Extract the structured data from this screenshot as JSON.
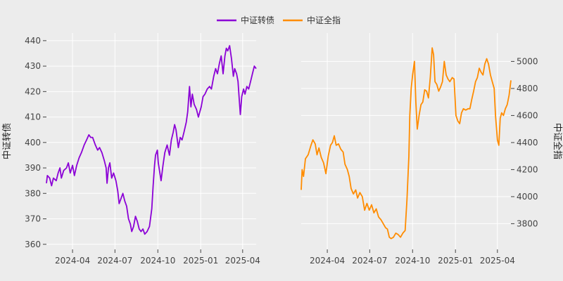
{
  "chart_data": {
    "type": "line",
    "grid": true,
    "legend": {
      "placement": "top-center",
      "entries": [
        {
          "name": "中证转债",
          "color": "#8b00d6"
        },
        {
          "name": "中证全指",
          "color": "#ff8c00"
        }
      ]
    },
    "x_ticks": [
      "2024-04",
      "2024-07",
      "2024-10",
      "2025-01",
      "2025-04"
    ],
    "panels": [
      {
        "series_name": "中证转债",
        "ylabel": "中证转债",
        "y_axis_side": "left",
        "color": "#8b00d6",
        "ylim": [
          358,
          443
        ],
        "y_ticks": [
          360,
          370,
          380,
          390,
          400,
          410,
          420,
          430,
          440
        ],
        "x_range": [
          "2024-02-05",
          "2025-04-30"
        ],
        "points": [
          [
            "2024-02-05",
            384
          ],
          [
            "2024-02-07",
            387
          ],
          [
            "2024-02-12",
            386
          ],
          [
            "2024-02-16",
            383
          ],
          [
            "2024-02-20",
            386
          ],
          [
            "2024-02-26",
            385
          ],
          [
            "2024-03-01",
            388
          ],
          [
            "2024-03-05",
            390
          ],
          [
            "2024-03-08",
            386
          ],
          [
            "2024-03-13",
            389
          ],
          [
            "2024-03-19",
            390
          ],
          [
            "2024-03-23",
            392
          ],
          [
            "2024-03-27",
            388
          ],
          [
            "2024-04-01",
            391
          ],
          [
            "2024-04-05",
            387
          ],
          [
            "2024-04-10",
            391
          ],
          [
            "2024-04-15",
            394
          ],
          [
            "2024-04-20",
            396
          ],
          [
            "2024-04-26",
            399
          ],
          [
            "2024-05-01",
            401
          ],
          [
            "2024-05-06",
            403
          ],
          [
            "2024-05-10",
            402
          ],
          [
            "2024-05-14",
            402
          ],
          [
            "2024-05-20",
            399
          ],
          [
            "2024-05-25",
            397
          ],
          [
            "2024-05-29",
            398
          ],
          [
            "2024-06-03",
            396
          ],
          [
            "2024-06-08",
            393
          ],
          [
            "2024-06-12",
            390
          ],
          [
            "2024-06-14",
            384
          ],
          [
            "2024-06-17",
            390
          ],
          [
            "2024-06-20",
            392
          ],
          [
            "2024-06-24",
            386
          ],
          [
            "2024-06-28",
            388
          ],
          [
            "2024-07-03",
            385
          ],
          [
            "2024-07-07",
            381
          ],
          [
            "2024-07-10",
            376
          ],
          [
            "2024-07-14",
            378
          ],
          [
            "2024-07-18",
            380
          ],
          [
            "2024-07-22",
            377
          ],
          [
            "2024-07-26",
            375
          ],
          [
            "2024-07-30",
            370
          ],
          [
            "2024-08-03",
            368
          ],
          [
            "2024-08-06",
            365
          ],
          [
            "2024-08-10",
            367
          ],
          [
            "2024-08-14",
            371
          ],
          [
            "2024-08-18",
            369
          ],
          [
            "2024-08-22",
            366
          ],
          [
            "2024-08-26",
            365
          ],
          [
            "2024-08-30",
            366
          ],
          [
            "2024-09-03",
            364
          ],
          [
            "2024-09-08",
            365
          ],
          [
            "2024-09-13",
            367
          ],
          [
            "2024-09-18",
            374
          ],
          [
            "2024-09-21",
            383
          ],
          [
            "2024-09-24",
            391
          ],
          [
            "2024-09-26",
            395
          ],
          [
            "2024-09-30",
            397
          ],
          [
            "2024-10-02",
            392
          ],
          [
            "2024-10-08",
            385
          ],
          [
            "2024-10-12",
            391
          ],
          [
            "2024-10-16",
            396
          ],
          [
            "2024-10-21",
            399
          ],
          [
            "2024-10-26",
            395
          ],
          [
            "2024-10-30",
            401
          ],
          [
            "2024-11-03",
            404
          ],
          [
            "2024-11-06",
            407
          ],
          [
            "2024-11-09",
            405
          ],
          [
            "2024-11-14",
            398
          ],
          [
            "2024-11-18",
            402
          ],
          [
            "2024-11-22",
            401
          ],
          [
            "2024-11-26",
            404
          ],
          [
            "2024-12-01",
            408
          ],
          [
            "2024-12-04",
            412
          ],
          [
            "2024-12-06",
            417
          ],
          [
            "2024-12-08",
            422
          ],
          [
            "2024-12-11",
            414
          ],
          [
            "2024-12-14",
            419
          ],
          [
            "2024-12-18",
            415
          ],
          [
            "2024-12-23",
            413
          ],
          [
            "2024-12-27",
            410
          ],
          [
            "2025-01-02",
            414
          ],
          [
            "2025-01-06",
            418
          ],
          [
            "2025-01-10",
            419
          ],
          [
            "2025-01-15",
            421
          ],
          [
            "2025-01-20",
            422
          ],
          [
            "2025-01-24",
            421
          ],
          [
            "2025-01-29",
            426
          ],
          [
            "2025-02-02",
            429
          ],
          [
            "2025-02-06",
            427
          ],
          [
            "2025-02-10",
            431
          ],
          [
            "2025-02-14",
            434
          ],
          [
            "2025-02-18",
            427
          ],
          [
            "2025-02-22",
            434
          ],
          [
            "2025-02-25",
            437
          ],
          [
            "2025-02-28",
            436
          ],
          [
            "2025-03-04",
            438
          ],
          [
            "2025-03-08",
            433
          ],
          [
            "2025-03-12",
            426
          ],
          [
            "2025-03-15",
            429
          ],
          [
            "2025-03-19",
            427
          ],
          [
            "2025-03-22",
            424
          ],
          [
            "2025-03-25",
            416
          ],
          [
            "2025-03-27",
            411
          ],
          [
            "2025-03-30",
            418
          ],
          [
            "2025-04-03",
            421
          ],
          [
            "2025-04-06",
            419
          ],
          [
            "2025-04-10",
            422
          ],
          [
            "2025-04-14",
            421
          ],
          [
            "2025-04-18",
            424
          ],
          [
            "2025-04-22",
            427
          ],
          [
            "2025-04-26",
            430
          ],
          [
            "2025-04-30",
            429
          ]
        ]
      },
      {
        "series_name": "中证全指",
        "ylabel": "中证全指",
        "y_axis_side": "right",
        "color": "#ff8c00",
        "ylim": [
          3610,
          5210
        ],
        "y_ticks": [
          3800,
          4000,
          4200,
          4400,
          4600,
          4800,
          5000
        ],
        "x_range": [
          "2024-02-05",
          "2025-04-30"
        ],
        "points": [
          [
            "2024-02-05",
            4050
          ],
          [
            "2024-02-07",
            4200
          ],
          [
            "2024-02-10",
            4150
          ],
          [
            "2024-02-14",
            4280
          ],
          [
            "2024-02-20",
            4310
          ],
          [
            "2024-02-26",
            4380
          ],
          [
            "2024-03-01",
            4420
          ],
          [
            "2024-03-06",
            4390
          ],
          [
            "2024-03-10",
            4310
          ],
          [
            "2024-03-14",
            4360
          ],
          [
            "2024-03-19",
            4290
          ],
          [
            "2024-03-24",
            4250
          ],
          [
            "2024-03-29",
            4170
          ],
          [
            "2024-04-03",
            4300
          ],
          [
            "2024-04-08",
            4380
          ],
          [
            "2024-04-12",
            4400
          ],
          [
            "2024-04-16",
            4450
          ],
          [
            "2024-04-20",
            4380
          ],
          [
            "2024-04-25",
            4390
          ],
          [
            "2024-04-30",
            4350
          ],
          [
            "2024-05-05",
            4330
          ],
          [
            "2024-05-09",
            4240
          ],
          [
            "2024-05-14",
            4200
          ],
          [
            "2024-05-18",
            4150
          ],
          [
            "2024-05-22",
            4060
          ],
          [
            "2024-05-27",
            4020
          ],
          [
            "2024-06-01",
            4050
          ],
          [
            "2024-06-05",
            3990
          ],
          [
            "2024-06-10",
            4030
          ],
          [
            "2024-06-15",
            4000
          ],
          [
            "2024-06-20",
            3900
          ],
          [
            "2024-06-25",
            3950
          ],
          [
            "2024-06-30",
            3900
          ],
          [
            "2024-07-05",
            3940
          ],
          [
            "2024-07-10",
            3880
          ],
          [
            "2024-07-15",
            3910
          ],
          [
            "2024-07-20",
            3850
          ],
          [
            "2024-07-25",
            3830
          ],
          [
            "2024-07-30",
            3800
          ],
          [
            "2024-08-04",
            3770
          ],
          [
            "2024-08-08",
            3760
          ],
          [
            "2024-08-12",
            3700
          ],
          [
            "2024-08-16",
            3690
          ],
          [
            "2024-08-21",
            3700
          ],
          [
            "2024-08-26",
            3730
          ],
          [
            "2024-08-31",
            3720
          ],
          [
            "2024-09-05",
            3700
          ],
          [
            "2024-09-10",
            3730
          ],
          [
            "2024-09-15",
            3750
          ],
          [
            "2024-09-19",
            3980
          ],
          [
            "2024-09-23",
            4300
          ],
          [
            "2024-09-25",
            4600
          ],
          [
            "2024-09-28",
            4800
          ],
          [
            "2024-10-01",
            4900
          ],
          [
            "2024-10-05",
            5000
          ],
          [
            "2024-10-08",
            4700
          ],
          [
            "2024-10-11",
            4500
          ],
          [
            "2024-10-15",
            4600
          ],
          [
            "2024-10-19",
            4680
          ],
          [
            "2024-10-23",
            4700
          ],
          [
            "2024-10-27",
            4790
          ],
          [
            "2024-10-31",
            4780
          ],
          [
            "2024-11-04",
            4730
          ],
          [
            "2024-11-08",
            4880
          ],
          [
            "2024-11-12",
            5100
          ],
          [
            "2024-11-15",
            5050
          ],
          [
            "2024-11-18",
            4850
          ],
          [
            "2024-11-22",
            4830
          ],
          [
            "2024-11-26",
            4780
          ],
          [
            "2024-11-30",
            4810
          ],
          [
            "2024-12-04",
            4850
          ],
          [
            "2024-12-08",
            5000
          ],
          [
            "2024-12-12",
            4900
          ],
          [
            "2024-12-16",
            4870
          ],
          [
            "2024-12-20",
            4850
          ],
          [
            "2024-12-25",
            4880
          ],
          [
            "2024-12-29",
            4870
          ],
          [
            "2025-01-02",
            4600
          ],
          [
            "2025-01-06",
            4560
          ],
          [
            "2025-01-10",
            4540
          ],
          [
            "2025-01-14",
            4620
          ],
          [
            "2025-01-18",
            4650
          ],
          [
            "2025-01-23",
            4640
          ],
          [
            "2025-01-28",
            4650
          ],
          [
            "2025-02-01",
            4650
          ],
          [
            "2025-02-05",
            4720
          ],
          [
            "2025-02-09",
            4780
          ],
          [
            "2025-02-13",
            4850
          ],
          [
            "2025-02-17",
            4880
          ],
          [
            "2025-02-21",
            4950
          ],
          [
            "2025-02-25",
            4920
          ],
          [
            "2025-03-01",
            4900
          ],
          [
            "2025-03-05",
            4980
          ],
          [
            "2025-03-09",
            5020
          ],
          [
            "2025-03-13",
            4980
          ],
          [
            "2025-03-17",
            4900
          ],
          [
            "2025-03-21",
            4850
          ],
          [
            "2025-03-25",
            4800
          ],
          [
            "2025-03-28",
            4600
          ],
          [
            "2025-04-01",
            4420
          ],
          [
            "2025-04-04",
            4380
          ],
          [
            "2025-04-07",
            4580
          ],
          [
            "2025-04-10",
            4620
          ],
          [
            "2025-04-14",
            4600
          ],
          [
            "2025-04-18",
            4650
          ],
          [
            "2025-04-22",
            4680
          ],
          [
            "2025-04-26",
            4750
          ],
          [
            "2025-04-30",
            4860
          ]
        ]
      }
    ]
  }
}
